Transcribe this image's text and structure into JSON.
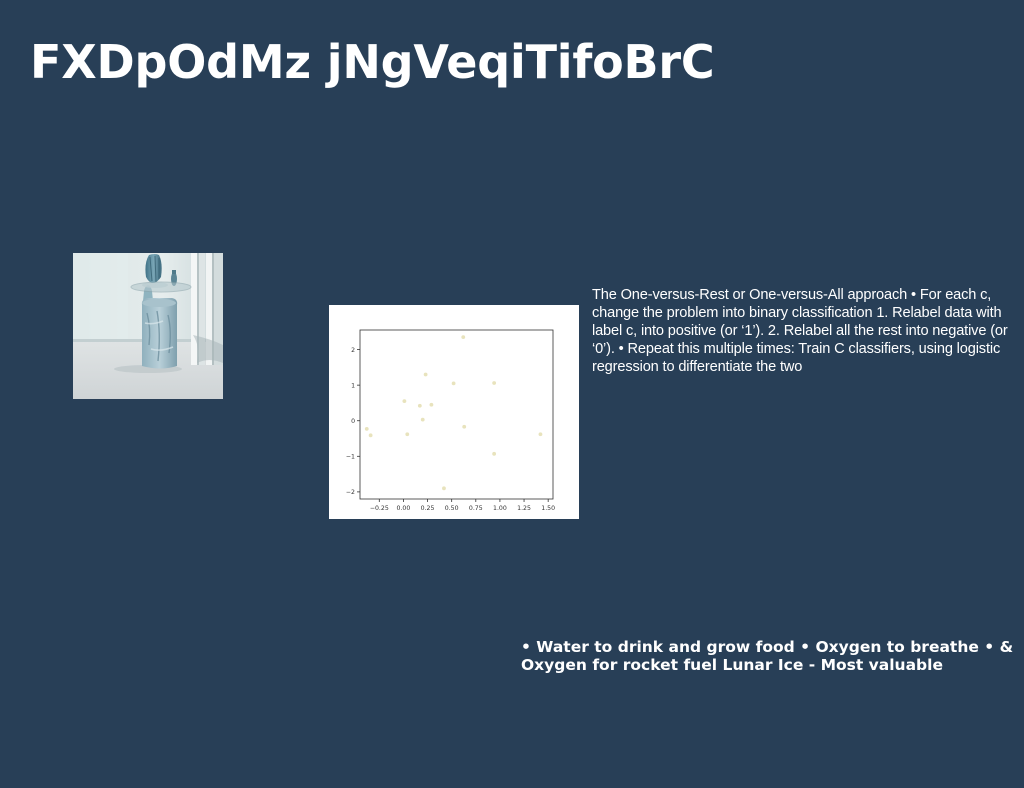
{
  "slide": {
    "title": "FXDpOdMz jNgVeqiTifoBrC",
    "body_text": "The One-versus-Rest or One-versus-All approach • For each c, change the problem into binary classification 1. Relabel data with label c, into positive (or ‘1’). 2. Relabel all the rest into negative (or ‘0’). • Repeat this multiple times: Train C classifiers, using logistic regression to differentiate the two",
    "bullet_text": "• Water to drink and grow food • Oxygen to breathe • & Oxygen for rocket fuel Lunar Ice - Most valuable"
  },
  "photo": {
    "subject": "interior-vase-photo"
  },
  "chart_data": {
    "type": "scatter",
    "title": "",
    "xlabel": "",
    "ylabel": "",
    "xlim": [
      -0.45,
      1.55
    ],
    "ylim": [
      -2.2,
      2.55
    ],
    "x_ticks": [
      -0.25,
      0.0,
      0.25,
      0.5,
      0.75,
      1.0,
      1.25,
      1.5
    ],
    "x_tick_labels": [
      "−0.25",
      "0.00",
      "0.25",
      "0.50",
      "0.75",
      "1.00",
      "1.25",
      "1.50"
    ],
    "y_ticks": [
      -2,
      -1,
      0,
      1,
      2
    ],
    "y_tick_labels": [
      "−2",
      "−1",
      "0",
      "1",
      "2"
    ],
    "grid": false,
    "point_color": "#e8e3bd",
    "points": [
      {
        "x": -0.38,
        "y": -0.23
      },
      {
        "x": -0.34,
        "y": -0.41
      },
      {
        "x": 0.01,
        "y": 0.55
      },
      {
        "x": 0.04,
        "y": -0.38
      },
      {
        "x": 0.17,
        "y": 0.42
      },
      {
        "x": 0.2,
        "y": 0.03
      },
      {
        "x": 0.23,
        "y": 1.3
      },
      {
        "x": 0.29,
        "y": 0.45
      },
      {
        "x": 0.42,
        "y": -1.9
      },
      {
        "x": 0.52,
        "y": 1.05
      },
      {
        "x": 0.62,
        "y": 2.35
      },
      {
        "x": 0.63,
        "y": -0.17
      },
      {
        "x": 0.94,
        "y": 1.06
      },
      {
        "x": 0.94,
        "y": -0.93
      },
      {
        "x": 1.42,
        "y": -0.38
      }
    ]
  }
}
